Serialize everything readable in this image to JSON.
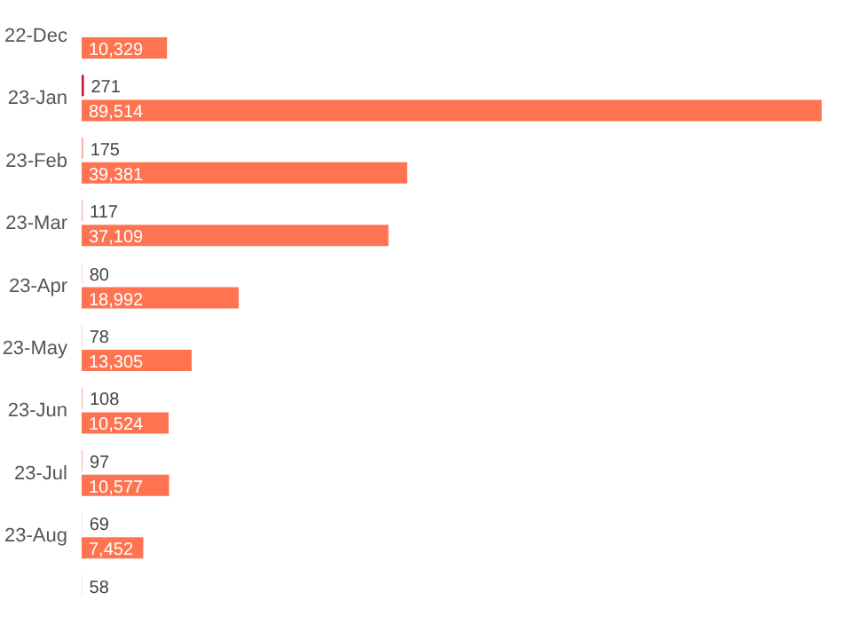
{
  "chart_data": {
    "type": "bar",
    "orientation": "horizontal",
    "categories": [
      "22-Dec",
      "23-Jan",
      "23-Feb",
      "23-Mar",
      "23-Apr",
      "23-May",
      "23-Jun",
      "23-Jul",
      "23-Aug",
      null
    ],
    "series": [
      {
        "colors": [
          "#f2b5b5",
          "#c8102e",
          "#f0a0a0",
          "#f0a8a8",
          "#f7d0d0",
          "#f7d0d0",
          "#f0a8a8",
          "#f0a8a8",
          "#f7d0d0",
          "#f7d0d0"
        ],
        "values": [
          null,
          271,
          175,
          117,
          80,
          78,
          108,
          97,
          69,
          58
        ],
        "value_labels": [
          null,
          "271",
          "175",
          "117",
          "80",
          "78",
          "108",
          "97",
          "69",
          "58"
        ]
      },
      {
        "color": "#ff7350",
        "values": [
          10329,
          89514,
          39381,
          37109,
          18992,
          13305,
          10524,
          10577,
          7452,
          null
        ],
        "value_labels": [
          "10,329",
          "89,514",
          "39,381",
          "37,109",
          "18,992",
          "13,305",
          "10,524",
          "10,577",
          "7,452",
          null
        ]
      }
    ],
    "xlim": [
      0,
      89514
    ],
    "tick_labels": "y"
  }
}
